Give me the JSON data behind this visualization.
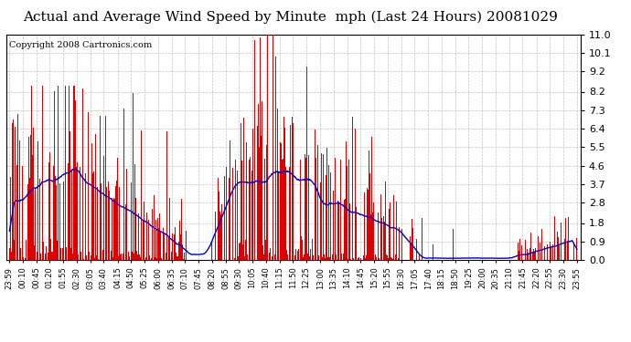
{
  "title": "Actual and Average Wind Speed by Minute  mph (Last 24 Hours) 20081029",
  "copyright": "Copyright 2008 Cartronics.com",
  "yticks": [
    0.0,
    0.9,
    1.8,
    2.8,
    3.7,
    4.6,
    5.5,
    6.4,
    7.3,
    8.2,
    9.2,
    10.1,
    11.0
  ],
  "xtick_labels": [
    "23:59",
    "00:10",
    "00:45",
    "01:20",
    "01:55",
    "02:30",
    "03:05",
    "03:40",
    "04:15",
    "04:50",
    "05:25",
    "06:00",
    "06:35",
    "07:10",
    "07:45",
    "08:20",
    "08:55",
    "09:30",
    "10:05",
    "10:40",
    "11:15",
    "11:50",
    "12:25",
    "13:00",
    "13:35",
    "14:10",
    "14:45",
    "15:20",
    "15:55",
    "16:30",
    "17:05",
    "17:40",
    "18:15",
    "18:50",
    "19:25",
    "20:00",
    "20:35",
    "21:10",
    "21:45",
    "22:20",
    "22:55",
    "23:30",
    "23:55"
  ],
  "bar_color": "#dd0000",
  "line_color": "#0000cc",
  "background_color": "#ffffff",
  "grid_color": "#bbbbbb",
  "title_fontsize": 11,
  "copyright_fontsize": 7,
  "xlabel_fontsize": 6,
  "ylim": [
    0.0,
    11.0
  ],
  "bar_width": 0.8
}
